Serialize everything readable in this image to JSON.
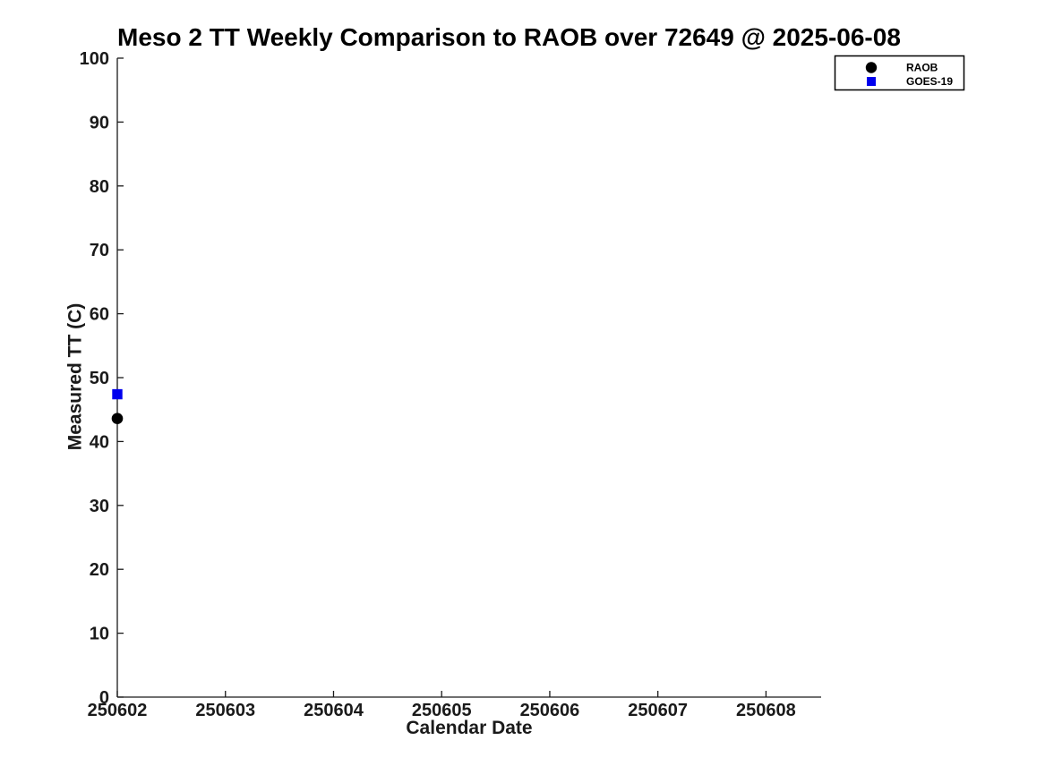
{
  "chart_data": {
    "type": "scatter",
    "title": "Meso 2 TT Weekly Comparison to RAOB over 72649 @ 2025-06-08",
    "xlabel": "Calendar Date",
    "ylabel": "Measured TT (C)",
    "x_ticks": [
      250602,
      250603,
      250604,
      250605,
      250606,
      250607,
      250608
    ],
    "x_tick_labels": [
      "250602",
      "250603",
      "250604",
      "250605",
      "250606",
      "250607",
      "250608"
    ],
    "y_ticks": [
      0,
      10,
      20,
      30,
      40,
      50,
      60,
      70,
      80,
      90,
      100
    ],
    "xlim": [
      250602,
      250608.51
    ],
    "ylim": [
      0,
      100
    ],
    "grid": false,
    "legend_position": "top-right",
    "series": [
      {
        "name": "RAOB",
        "marker": "circle",
        "color": "#000000",
        "points": [
          {
            "x": 250602,
            "y": 43.6
          }
        ]
      },
      {
        "name": "GOES-19",
        "marker": "square",
        "color": "#0000ee",
        "points": [
          {
            "x": 250602,
            "y": 47.4
          }
        ]
      }
    ]
  },
  "colors": {
    "background": "#ffffff",
    "axis": "#1a1a1a",
    "tick_label": "#1a1a1a",
    "title_text": "#000000",
    "legend_border": "#000000",
    "legend_background": "#ffffff",
    "raob_marker": "#000000",
    "goes19_marker": "#0000ee"
  }
}
